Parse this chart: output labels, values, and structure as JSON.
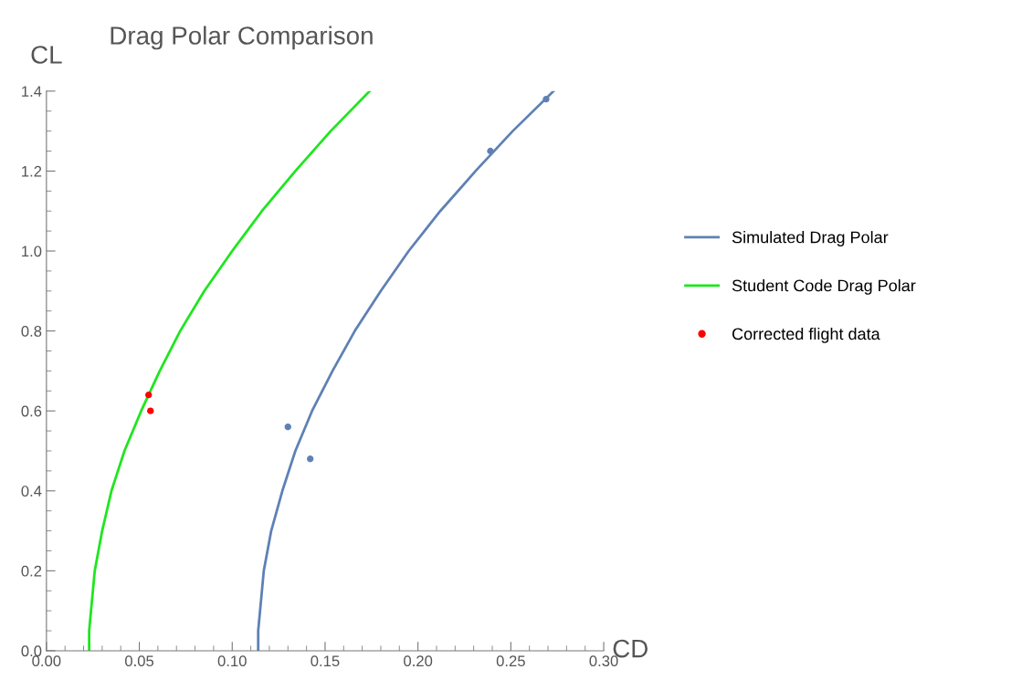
{
  "chart_data": {
    "type": "line",
    "title": "Drag Polar Comparison",
    "xlabel": "CD",
    "ylabel": "CL",
    "xlim": [
      0,
      0.3
    ],
    "ylim": [
      0,
      1.4
    ],
    "xticks": [
      {
        "value": 0,
        "label": "0.00"
      },
      {
        "value": 0.05,
        "label": "0.05"
      },
      {
        "value": 0.1,
        "label": "0.10"
      },
      {
        "value": 0.15,
        "label": "0.15"
      },
      {
        "value": 0.2,
        "label": "0.20"
      },
      {
        "value": 0.25,
        "label": "0.25"
      },
      {
        "value": 0.3,
        "label": "0.30"
      }
    ],
    "yticks": [
      {
        "value": 0,
        "label": "0.0"
      },
      {
        "value": 0.2,
        "label": "0.2"
      },
      {
        "value": 0.4,
        "label": "0.4"
      },
      {
        "value": 0.6,
        "label": "0.6"
      },
      {
        "value": 0.8,
        "label": "0.8"
      },
      {
        "value": 1.0,
        "label": "1.0"
      },
      {
        "value": 1.2,
        "label": "1.2"
      },
      {
        "value": 1.4,
        "label": "1.4"
      }
    ],
    "grid": false,
    "legend": "right",
    "series": [
      {
        "name": "Simulated Drag Polar",
        "color": "#5e81b5",
        "x": [
          0.114,
          0.114,
          0.115,
          0.116,
          0.117,
          0.121,
          0.127,
          0.134,
          0.143,
          0.154,
          0.166,
          0.18,
          0.195,
          0.212,
          0.231,
          0.251,
          0.273
        ],
        "values": [
          0,
          0.05,
          0.1,
          0.15,
          0.2,
          0.3,
          0.4,
          0.5,
          0.6,
          0.7,
          0.8,
          0.9,
          1.0,
          1.1,
          1.2,
          1.3,
          1.4
        ]
      },
      {
        "name": "Student Code Drag Polar",
        "color": "#1ee61e",
        "x": [
          0.023,
          0.023,
          0.024,
          0.025,
          0.026,
          0.03,
          0.035,
          0.042,
          0.051,
          0.061,
          0.072,
          0.085,
          0.1,
          0.116,
          0.134,
          0.153,
          0.174
        ],
        "values": [
          0,
          0.05,
          0.1,
          0.15,
          0.2,
          0.3,
          0.4,
          0.5,
          0.6,
          0.7,
          0.8,
          0.9,
          1.0,
          1.1,
          1.2,
          1.3,
          1.4
        ]
      },
      {
        "name": "Corrected flight data",
        "type": "scatter",
        "color": "#ff0000",
        "x": [
          0.055,
          0.056
        ],
        "values": [
          0.64,
          0.6
        ]
      },
      {
        "type": "scatter",
        "color": "#5e81b5",
        "x": [
          0.13,
          0.142,
          0.239,
          0.269
        ],
        "values": [
          0.56,
          0.48,
          1.25,
          1.38
        ]
      }
    ]
  }
}
